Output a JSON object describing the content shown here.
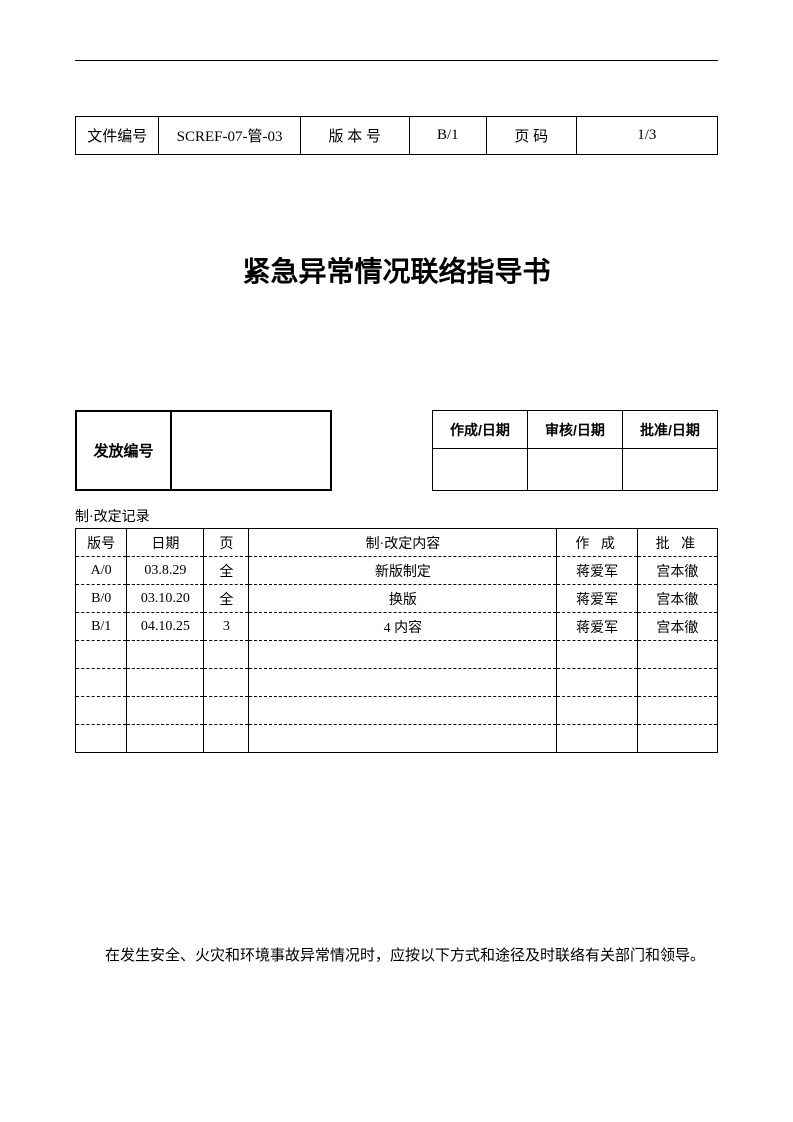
{
  "header": {
    "doc_no_label": "文件编号",
    "doc_no_value": "SCREF-07-管-03",
    "version_label": "版 本 号",
    "version_value": "B/1",
    "page_label": "页 码",
    "page_value": "1/3"
  },
  "title": "紧急异常情况联络指导书",
  "issue": {
    "label": "发放编号",
    "value": ""
  },
  "signatures": {
    "col1": "作成/日期",
    "col2": "审核/日期",
    "col3": "批准/日期",
    "v1": "",
    "v2": "",
    "v3": ""
  },
  "record_caption": "制·改定记录",
  "record_headers": {
    "h1": "版号",
    "h2": "日期",
    "h3": "页",
    "h4": "制·改定内容",
    "h5": "作 成",
    "h6": "批 准"
  },
  "records": [
    {
      "ver": "A/0",
      "date": "03.8.29",
      "page": "全",
      "content": "新版制定",
      "author": "蒋爱军",
      "approver": "宫本徹"
    },
    {
      "ver": "B/0",
      "date": "03.10.20",
      "page": "全",
      "content": "换版",
      "author": "蒋爱军",
      "approver": "宫本徹"
    },
    {
      "ver": "B/1",
      "date": "04.10.25",
      "page": "3",
      "content": "4 内容",
      "author": "蒋爱军",
      "approver": "宫本徹"
    },
    {
      "ver": "",
      "date": "",
      "page": "",
      "content": "",
      "author": "",
      "approver": ""
    },
    {
      "ver": "",
      "date": "",
      "page": "",
      "content": "",
      "author": "",
      "approver": ""
    },
    {
      "ver": "",
      "date": "",
      "page": "",
      "content": "",
      "author": "",
      "approver": ""
    },
    {
      "ver": "",
      "date": "",
      "page": "",
      "content": "",
      "author": "",
      "approver": ""
    }
  ],
  "body_text": "在发生安全、火灾和环境事故异常情况时，应按以下方式和途径及时联络有关部门和领导。"
}
